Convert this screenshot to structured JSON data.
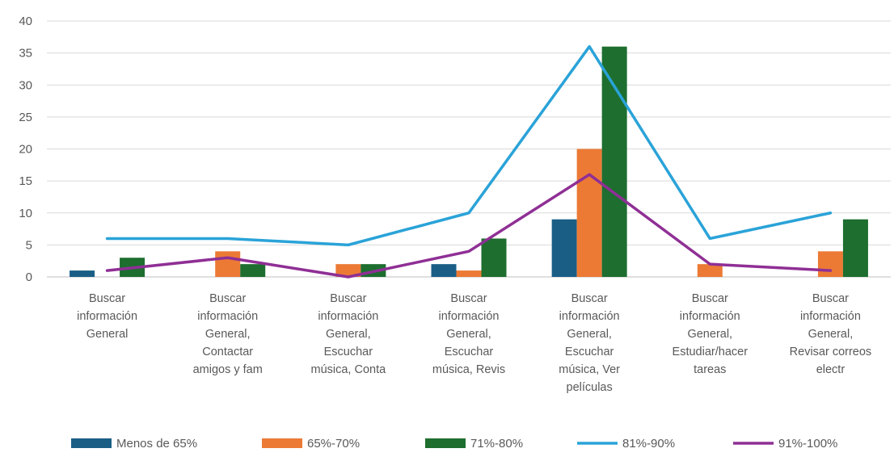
{
  "chart_data": {
    "type": "bar",
    "title": "",
    "xlabel": "",
    "ylabel": "",
    "ylim": [
      0,
      40
    ],
    "yticks": [
      0,
      5,
      10,
      15,
      20,
      25,
      30,
      35,
      40
    ],
    "grid": true,
    "legend_position": "bottom",
    "categories": [
      [
        "Buscar",
        "información",
        "General"
      ],
      [
        "Buscar",
        "información",
        "General,",
        "Contactar",
        "amigos y fam"
      ],
      [
        "Buscar",
        "información",
        "General,",
        "Escuchar",
        "música, Conta"
      ],
      [
        "Buscar",
        "información",
        "General,",
        "Escuchar",
        "música, Revis"
      ],
      [
        "Buscar",
        "información",
        "General,",
        "Escuchar",
        "música, Ver",
        "películas"
      ],
      [
        "Buscar",
        "información",
        "General,",
        "Estudiar/hacer",
        "tareas"
      ],
      [
        "Buscar",
        "información",
        "General,",
        "Revisar correos",
        "electr"
      ]
    ],
    "series": [
      {
        "name": "Menos de 65%",
        "kind": "bar",
        "color": "#1a5e86",
        "values": [
          1,
          0,
          0,
          2,
          9,
          0,
          0
        ]
      },
      {
        "name": "65%-70%",
        "kind": "bar",
        "color": "#ec7a35",
        "values": [
          0,
          4,
          2,
          1,
          20,
          2,
          4
        ]
      },
      {
        "name": "71%-80%",
        "kind": "bar",
        "color": "#1d6e2f",
        "values": [
          3,
          2,
          2,
          6,
          36,
          0,
          9
        ]
      },
      {
        "name": "81%-90%",
        "kind": "line",
        "color": "#2aa3d8",
        "values": [
          6,
          6,
          5,
          10,
          36,
          6,
          10
        ]
      },
      {
        "name": "91%-100%",
        "kind": "line",
        "color": "#8f2f95",
        "values": [
          1,
          3,
          0,
          4,
          16,
          2,
          1
        ]
      }
    ]
  }
}
